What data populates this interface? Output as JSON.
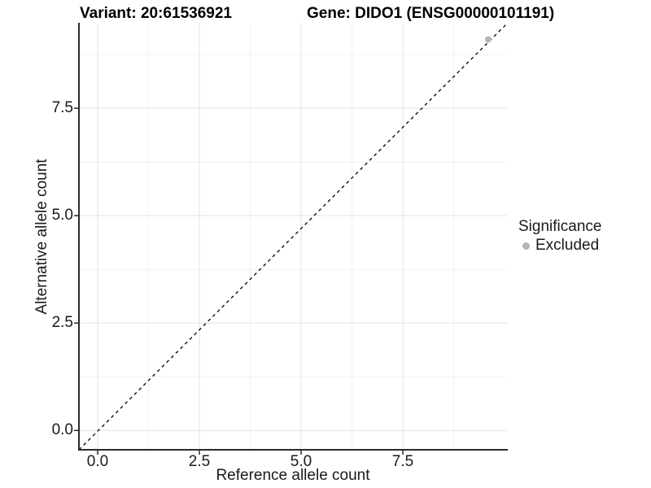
{
  "figure": {
    "title_left": "Variant: 20:61536921",
    "title_right": "Gene: DIDO1 (ENSG00000101191)"
  },
  "legend": {
    "title": "Significance",
    "items": [
      {
        "label": "Excluded",
        "color": "#b5b5b5"
      }
    ]
  },
  "colors": {
    "background": "#ffffff",
    "grid_major": "#e3e3e3",
    "grid_minor": "#f1f1f1",
    "axis_line": "#2b2b2b",
    "tick_mark": "#2b2b2b",
    "reference_line": "#111111",
    "point": "#b5b5b5",
    "text": "#1a1a1a"
  },
  "chart_data": {
    "type": "scatter",
    "title": "Variant: 20:61536921   |   Gene: DIDO1 (ENSG00000101191)",
    "xlabel": "Reference allele count",
    "ylabel": "Alternative allele count",
    "xlim": [
      -0.46,
      10.06
    ],
    "ylim": [
      -0.45,
      9.47
    ],
    "x_ticks": {
      "values": [
        0,
        2.5,
        5,
        7.5
      ],
      "labels": [
        "0.0",
        "2.5",
        "5.0",
        "7.5"
      ]
    },
    "y_ticks": {
      "values": [
        0,
        2.5,
        5,
        7.5
      ],
      "labels": [
        "0.0",
        "2.5",
        "5.0",
        "7.5"
      ]
    },
    "x_minor": [
      1.25,
      3.75,
      6.25,
      8.75
    ],
    "y_minor": [
      1.25,
      3.75,
      6.25,
      8.75
    ],
    "grid": "major+minor",
    "legend_position": "right",
    "series": [
      {
        "name": "Excluded",
        "color": "#b5b5b5",
        "marker": "circle",
        "marker_radius": 4,
        "points": [
          [
            9.6,
            9.1
          ]
        ]
      }
    ],
    "reference_line": {
      "name": "identity (y = x)",
      "style": "dashed",
      "color": "#111111",
      "segment": [
        [
          -0.46,
          -0.45
        ],
        [
          10.06,
          9.47
        ]
      ]
    }
  }
}
